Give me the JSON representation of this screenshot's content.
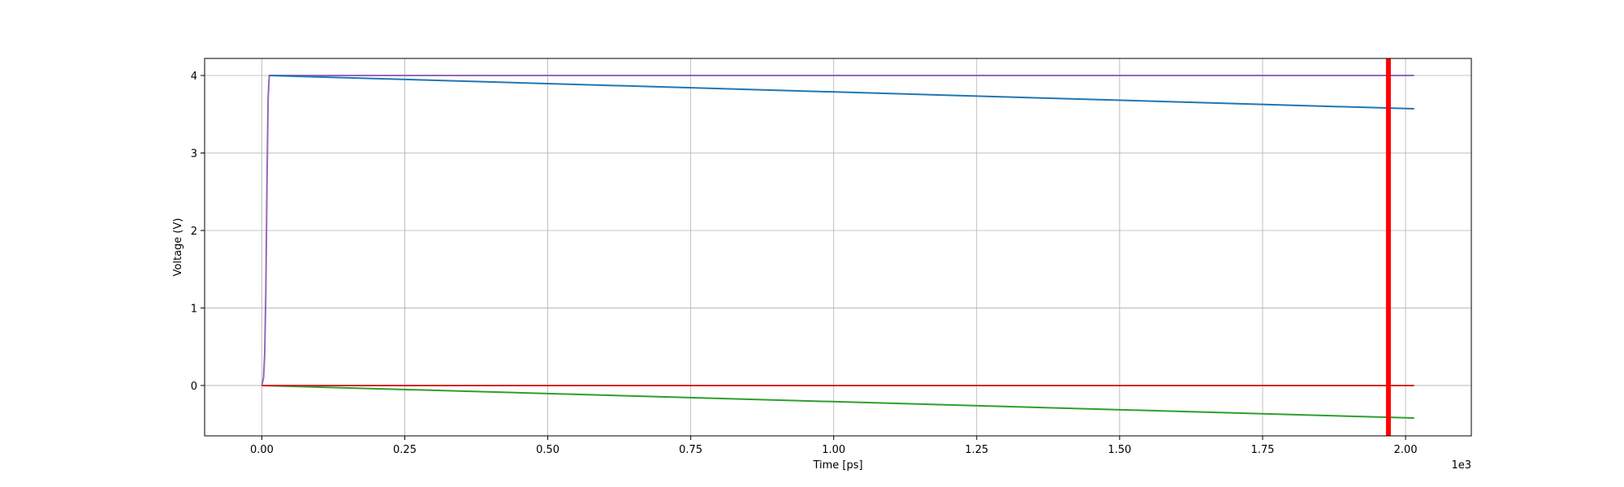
{
  "chart_data": {
    "type": "line",
    "title": "",
    "xlabel": "Time [ps]",
    "ylabel": "Voltage (V)",
    "x_scale_note": "1e3",
    "xlim": [
      -0.1,
      2.115
    ],
    "ylim": [
      -0.65,
      4.22
    ],
    "x_ticks": [
      0.0,
      0.25,
      0.5,
      0.75,
      1.0,
      1.25,
      1.5,
      1.75,
      2.0
    ],
    "x_tick_labels": [
      "0.00",
      "0.25",
      "0.50",
      "0.75",
      "1.00",
      "1.25",
      "1.50",
      "1.75",
      "2.00"
    ],
    "y_ticks": [
      0,
      1,
      2,
      3,
      4
    ],
    "y_tick_labels": [
      "0",
      "1",
      "2",
      "3",
      "4"
    ],
    "grid": true,
    "series": [
      {
        "color": "#9467bd",
        "x": [
          0.0,
          0.003,
          0.005,
          0.007,
          0.009,
          0.011,
          0.013,
          2.015
        ],
        "y": [
          0.0,
          0.1,
          0.4,
          1.2,
          2.6,
          3.7,
          4.0,
          4.0
        ]
      },
      {
        "color": "#1f77b4",
        "x": [
          0.013,
          2.015
        ],
        "y": [
          4.0,
          3.57
        ]
      },
      {
        "color": "#2ca02c",
        "x": [
          0.0,
          2.015
        ],
        "y": [
          0.0,
          -0.42
        ]
      },
      {
        "color": "#d62728",
        "x": [
          0.0,
          2.015
        ],
        "y": [
          0.0,
          0.0
        ]
      }
    ],
    "markers": [
      {
        "type": "vertical-line",
        "x": 1.97,
        "color": "#ff0000"
      }
    ]
  }
}
